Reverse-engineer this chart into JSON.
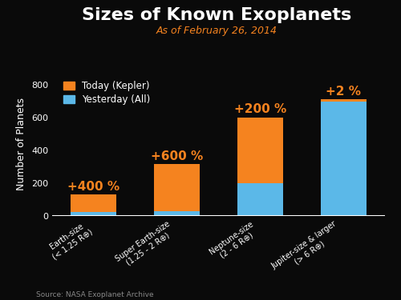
{
  "title": "Sizes of Known Exoplanets",
  "subtitle": "As of February 26, 2014",
  "categories": [
    "Earth-size\n(< 1.25 R⊕)",
    "Super Earth-size\n(1.25 - 2 R⊕)",
    "Neptune-size\n(2 - 6 R⊕)",
    "Jupiter-size & larger\n(> 6 R⊕)"
  ],
  "yesterday_values": [
    25,
    30,
    200,
    700
  ],
  "today_values": [
    130,
    320,
    600,
    715
  ],
  "color_today": "#F5831F",
  "color_yesterday": "#5BB8E8",
  "background_color": "#0a0a0a",
  "text_color": "#ffffff",
  "title_color": "#ffffff",
  "subtitle_color": "#F5831F",
  "annotation_color": "#F5831F",
  "ylabel": "Number of Planets",
  "ylim": [
    0,
    880
  ],
  "yticks": [
    0,
    200,
    400,
    600,
    800
  ],
  "source_text": "Source: NASA Exoplanet Archive",
  "legend_labels": [
    "Today (Kepler)",
    "Yesterday (All)"
  ],
  "title_fontsize": 16,
  "subtitle_fontsize": 9,
  "ylabel_fontsize": 9,
  "tick_fontsize": 8,
  "annotation_fontsize": 11,
  "legend_fontsize": 8.5,
  "source_fontsize": 6.5,
  "bar_width": 0.55
}
